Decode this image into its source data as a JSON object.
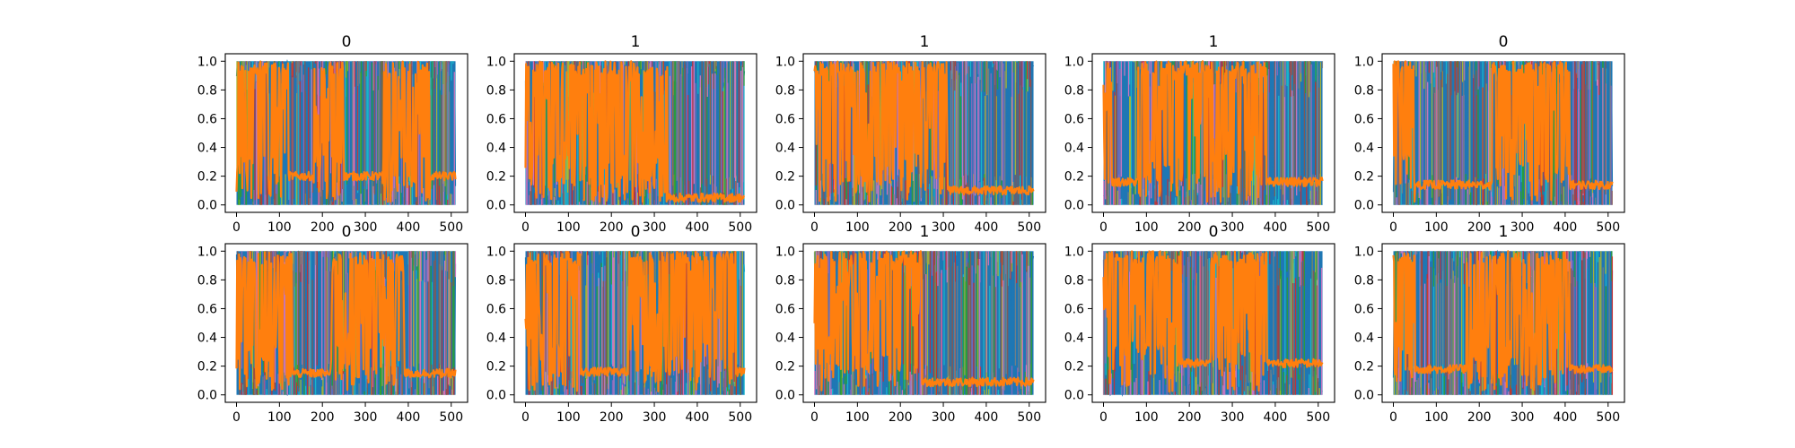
{
  "chart_data": {
    "type": "line",
    "layout": "2x5 grid of small multiples",
    "colors": {
      "background_series": "#1f77b4",
      "foreground_series": "#ff7f0e",
      "accent_series": [
        "#17becf",
        "#bcbd22",
        "#2ca02c",
        "#d62728",
        "#9467bd",
        "#e377c2",
        "#8c564b",
        "#7f7f7f"
      ]
    },
    "xlim": [
      0,
      512
    ],
    "ylim": [
      0.0,
      1.0
    ],
    "x_ticks": [
      "0",
      "100",
      "200",
      "300",
      "400",
      "500"
    ],
    "y_ticks": [
      "0.0",
      "0.2",
      "0.4",
      "0.6",
      "0.8",
      "1.0"
    ],
    "grid": false,
    "legend": "none",
    "panels": [
      {
        "title": "0",
        "high_segments": [
          [
            0,
            120
          ],
          [
            180,
            250
          ],
          [
            340,
            450
          ]
        ],
        "baseline": 0.2
      },
      {
        "title": "1",
        "high_segments": [
          [
            0,
            330
          ]
        ],
        "baseline": 0.05
      },
      {
        "title": "1",
        "high_segments": [
          [
            0,
            310
          ]
        ],
        "baseline": 0.1
      },
      {
        "title": "1",
        "high_segments": [
          [
            0,
            20
          ],
          [
            80,
            380
          ]
        ],
        "baseline": 0.16
      },
      {
        "title": "0",
        "high_segments": [
          [
            0,
            50
          ],
          [
            230,
            410
          ]
        ],
        "baseline": 0.14
      },
      {
        "title": "0",
        "high_segments": [
          [
            0,
            130
          ],
          [
            220,
            390
          ]
        ],
        "baseline": 0.15
      },
      {
        "title": "0",
        "high_segments": [
          [
            0,
            130
          ],
          [
            240,
            490
          ]
        ],
        "baseline": 0.16
      },
      {
        "title": "1",
        "high_segments": [
          [
            0,
            250
          ]
        ],
        "baseline": 0.09
      },
      {
        "title": "0",
        "high_segments": [
          [
            0,
            180
          ],
          [
            250,
            380
          ]
        ],
        "baseline": 0.22
      },
      {
        "title": "1",
        "high_segments": [
          [
            0,
            50
          ],
          [
            170,
            410
          ]
        ],
        "baseline": 0.18
      }
    ]
  }
}
